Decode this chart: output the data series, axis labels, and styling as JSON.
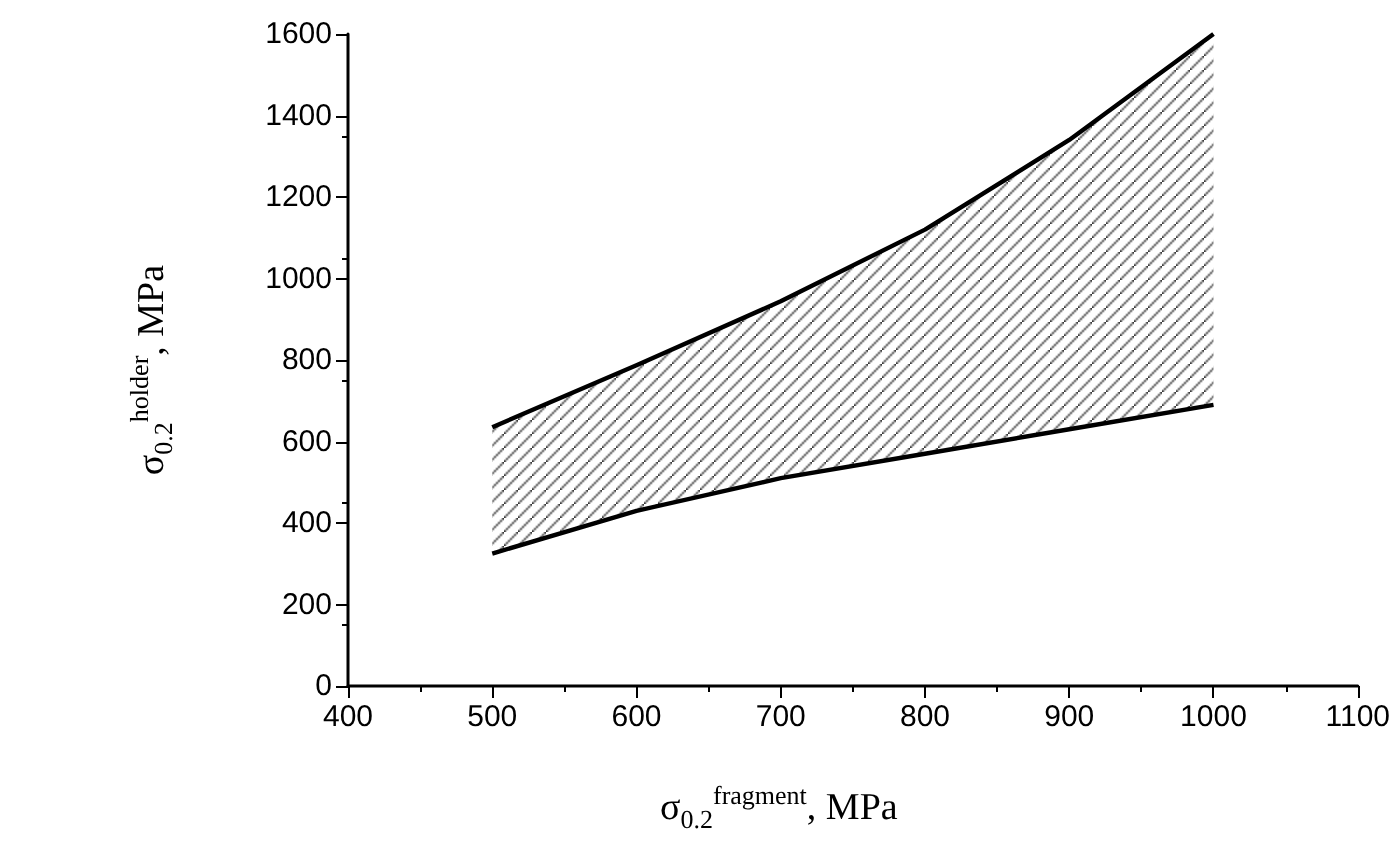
{
  "chart_data": {
    "type": "line",
    "xlabel": "σ$_{0.2}$$^{fragment}$, MPa",
    "ylabel": "σ$_{0.2}$$^{holder}$, MPa",
    "x": [
      500,
      600,
      700,
      800,
      900,
      1000
    ],
    "series": [
      {
        "color": "#000000",
        "values": [
          635,
          787,
          944,
          1120,
          1340,
          1600
        ],
        "lower": [
          325,
          430,
          510,
          570,
          630,
          690
        ],
        "upper": [
          635,
          787,
          944,
          1120,
          1340,
          1600
        ]
      },
      {
        "color": "#000000",
        "values": [
          325,
          430,
          510,
          570,
          630,
          690
        ]
      }
    ],
    "xlim": [
      400,
      1100
    ],
    "xticks": [
      400,
      500,
      600,
      700,
      800,
      900,
      1000,
      1100
    ],
    "ylim": [
      0,
      1600
    ],
    "yticks": [
      0,
      200,
      400,
      600,
      800,
      1000,
      1200,
      1400,
      1600
    ],
    "grid": false,
    "marker": "none",
    "line_style": "solid"
  }
}
